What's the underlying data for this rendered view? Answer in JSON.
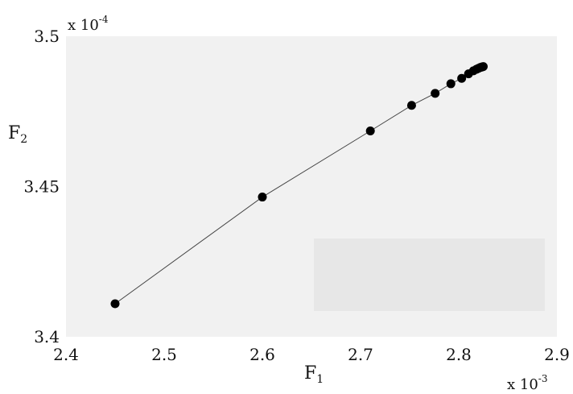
{
  "chart_data": {
    "type": "line",
    "xlabel": {
      "base": "F",
      "sub": "1"
    },
    "ylabel": {
      "base": "F",
      "sub": "2"
    },
    "xlim": [
      2.4,
      2.9
    ],
    "ylim": [
      3.4,
      3.5
    ],
    "x_ticks": [
      "2.4",
      "2.5",
      "2.6",
      "2.7",
      "2.8",
      "2.9"
    ],
    "y_ticks": [
      "3.4",
      "3.45",
      "3.5"
    ],
    "x_multiplier": {
      "base": "x 10",
      "exp": "-3"
    },
    "y_multiplier": {
      "base": "x 10",
      "exp": "-4"
    },
    "series": [
      {
        "marker": "circle",
        "line_color": "#444444",
        "marker_color": "#000000",
        "points": [
          {
            "x": 2.45,
            "y": 3.411
          },
          {
            "x": 2.6,
            "y": 3.4465
          },
          {
            "x": 2.71,
            "y": 3.4685
          },
          {
            "x": 2.752,
            "y": 3.477
          },
          {
            "x": 2.776,
            "y": 3.481
          },
          {
            "x": 2.792,
            "y": 3.4842
          },
          {
            "x": 2.803,
            "y": 3.486
          },
          {
            "x": 2.81,
            "y": 3.4875
          },
          {
            "x": 2.815,
            "y": 3.4885
          },
          {
            "x": 2.818,
            "y": 3.489
          },
          {
            "x": 2.82,
            "y": 3.4893
          },
          {
            "x": 2.822,
            "y": 3.4896
          },
          {
            "x": 2.823,
            "y": 3.4897
          },
          {
            "x": 2.824,
            "y": 3.4898
          },
          {
            "x": 2.825,
            "y": 3.4899
          }
        ]
      }
    ],
    "grid": false,
    "plot_background": "#f1f1f1",
    "legend": "none"
  }
}
